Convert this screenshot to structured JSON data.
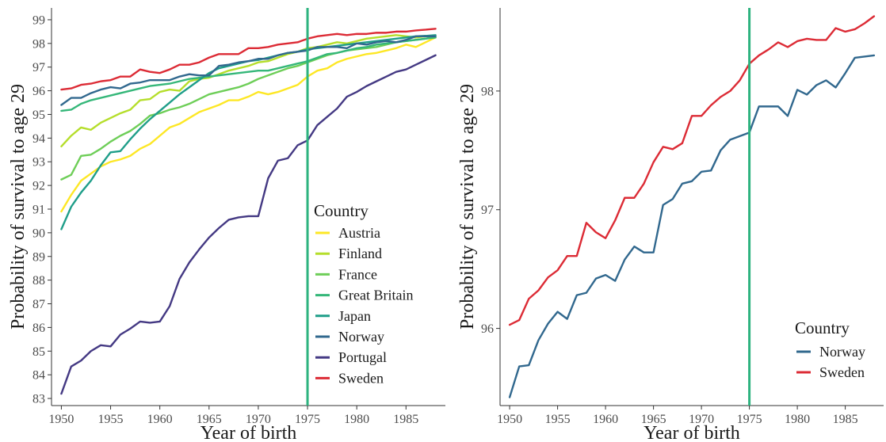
{
  "chart_data": [
    {
      "type": "line",
      "xlabel": "Year of birth",
      "ylabel": "Probability of survival to age 29",
      "xlim": [
        1949,
        1989
      ],
      "ylim": [
        82.7,
        99.5
      ],
      "xticks": [
        1950,
        1955,
        1960,
        1965,
        1970,
        1975,
        1980,
        1985
      ],
      "yticks": [
        83,
        84,
        85,
        86,
        87,
        88,
        89,
        90,
        91,
        92,
        93,
        94,
        95,
        96,
        97,
        98,
        99
      ],
      "vline": 1975,
      "vline_color": "#2db37f",
      "grid": false,
      "legend": {
        "title": "Country",
        "position": "right-inside"
      },
      "x": [
        1950,
        1951,
        1952,
        1953,
        1954,
        1955,
        1956,
        1957,
        1958,
        1959,
        1960,
        1961,
        1962,
        1963,
        1964,
        1965,
        1966,
        1967,
        1968,
        1969,
        1970,
        1971,
        1972,
        1973,
        1974,
        1975,
        1976,
        1977,
        1978,
        1979,
        1980,
        1981,
        1982,
        1983,
        1984,
        1985,
        1986,
        1987,
        1988
      ],
      "series": [
        {
          "name": "Austria",
          "color": "#fde725",
          "values": [
            90.9,
            91.6,
            92.2,
            92.5,
            92.8,
            93.0,
            93.1,
            93.25,
            93.55,
            93.75,
            94.1,
            94.45,
            94.6,
            94.85,
            95.1,
            95.25,
            95.4,
            95.6,
            95.6,
            95.75,
            95.95,
            95.85,
            95.95,
            96.1,
            96.25,
            96.6,
            96.85,
            96.95,
            97.2,
            97.35,
            97.45,
            97.55,
            97.6,
            97.7,
            97.8,
            97.95,
            97.85,
            98.05,
            98.25
          ]
        },
        {
          "name": "Finland",
          "color": "#b5de2b",
          "values": [
            93.65,
            94.1,
            94.45,
            94.35,
            94.65,
            94.85,
            95.05,
            95.2,
            95.6,
            95.65,
            95.95,
            96.05,
            96.0,
            96.4,
            96.5,
            96.55,
            96.7,
            96.85,
            96.95,
            97.05,
            97.2,
            97.25,
            97.4,
            97.55,
            97.65,
            97.8,
            97.85,
            97.95,
            98.05,
            98.0,
            98.1,
            98.2,
            98.25,
            98.3,
            98.35,
            98.3,
            98.25,
            98.3,
            98.3
          ]
        },
        {
          "name": "France",
          "color": "#6ece58",
          "values": [
            92.25,
            92.45,
            93.25,
            93.3,
            93.55,
            93.85,
            94.1,
            94.3,
            94.6,
            94.95,
            95.05,
            95.2,
            95.3,
            95.45,
            95.65,
            95.85,
            95.95,
            96.05,
            96.15,
            96.3,
            96.5,
            96.65,
            96.8,
            96.95,
            97.05,
            97.2,
            97.35,
            97.5,
            97.6,
            97.7,
            97.75,
            97.8,
            97.85,
            97.95,
            98.05,
            98.1,
            98.15,
            98.2,
            98.3
          ]
        },
        {
          "name": "Great Britain",
          "color": "#35b779",
          "values": [
            95.15,
            95.2,
            95.45,
            95.6,
            95.7,
            95.8,
            95.9,
            96.0,
            96.1,
            96.2,
            96.25,
            96.3,
            96.4,
            96.5,
            96.55,
            96.6,
            96.65,
            96.7,
            96.75,
            96.8,
            96.85,
            96.85,
            96.95,
            97.05,
            97.15,
            97.25,
            97.4,
            97.55,
            97.6,
            97.7,
            97.8,
            97.85,
            97.95,
            98.0,
            98.05,
            98.1,
            98.15,
            98.2,
            98.25
          ]
        },
        {
          "name": "Japan",
          "color": "#1f9e89",
          "values": [
            90.15,
            91.1,
            91.7,
            92.2,
            92.85,
            93.4,
            93.45,
            93.95,
            94.4,
            94.8,
            95.15,
            95.5,
            95.85,
            96.15,
            96.45,
            96.75,
            96.95,
            97.05,
            97.15,
            97.25,
            97.3,
            97.4,
            97.5,
            97.6,
            97.65,
            97.75,
            97.8,
            97.85,
            97.9,
            97.95,
            98.0,
            98.05,
            98.1,
            98.15,
            98.2,
            98.25,
            98.3,
            98.32,
            98.35
          ]
        },
        {
          "name": "Norway",
          "color": "#31688e",
          "values": [
            95.4,
            95.7,
            95.7,
            95.9,
            96.05,
            96.15,
            96.1,
            96.3,
            96.35,
            96.45,
            96.45,
            96.45,
            96.6,
            96.7,
            96.65,
            96.65,
            97.05,
            97.1,
            97.2,
            97.25,
            97.35,
            97.35,
            97.5,
            97.6,
            97.65,
            97.7,
            97.85,
            97.85,
            97.85,
            97.8,
            98.0,
            97.95,
            98.05,
            98.1,
            98.05,
            98.15,
            98.3,
            98.3,
            98.3
          ]
        },
        {
          "name": "Portugal",
          "color": "#443983",
          "values": [
            83.2,
            84.35,
            84.6,
            85.0,
            85.25,
            85.2,
            85.7,
            85.95,
            86.25,
            86.2,
            86.25,
            86.9,
            88.05,
            88.75,
            89.3,
            89.8,
            90.2,
            90.55,
            90.65,
            90.7,
            90.7,
            92.3,
            93.05,
            93.15,
            93.7,
            93.9,
            94.55,
            94.9,
            95.25,
            95.75,
            95.95,
            96.2,
            96.4,
            96.6,
            96.8,
            96.9,
            97.1,
            97.3,
            97.5
          ]
        },
        {
          "name": "Sweden",
          "color": "#dc2b35",
          "values": [
            96.05,
            96.1,
            96.25,
            96.3,
            96.4,
            96.45,
            96.6,
            96.6,
            96.9,
            96.8,
            96.75,
            96.9,
            97.1,
            97.1,
            97.2,
            97.4,
            97.55,
            97.55,
            97.55,
            97.8,
            97.8,
            97.85,
            97.95,
            98.0,
            98.05,
            98.2,
            98.3,
            98.35,
            98.4,
            98.35,
            98.4,
            98.4,
            98.45,
            98.45,
            98.5,
            98.5,
            98.55,
            98.58,
            98.62
          ]
        }
      ]
    },
    {
      "type": "line",
      "xlabel": "Year of birth",
      "ylabel": "Probability of survival to age 29",
      "xlim": [
        1949,
        1989
      ],
      "ylim": [
        95.35,
        98.7
      ],
      "xticks": [
        1950,
        1955,
        1960,
        1965,
        1970,
        1975,
        1980,
        1985
      ],
      "yticks": [
        96,
        97,
        98
      ],
      "vline": 1975,
      "vline_color": "#2db37f",
      "grid": false,
      "legend": {
        "title": "Country",
        "position": "bottom-right-inside"
      },
      "x": [
        1950,
        1951,
        1952,
        1953,
        1954,
        1955,
        1956,
        1957,
        1958,
        1959,
        1960,
        1961,
        1962,
        1963,
        1964,
        1965,
        1966,
        1967,
        1968,
        1969,
        1970,
        1971,
        1972,
        1973,
        1974,
        1975,
        1976,
        1977,
        1978,
        1979,
        1980,
        1981,
        1982,
        1983,
        1984,
        1985,
        1986,
        1987,
        1988
      ],
      "series": [
        {
          "name": "Norway",
          "color": "#31688e",
          "values": [
            95.42,
            95.68,
            95.69,
            95.9,
            96.04,
            96.14,
            96.08,
            96.28,
            96.3,
            96.42,
            96.45,
            96.4,
            96.58,
            96.69,
            96.64,
            96.64,
            97.04,
            97.09,
            97.22,
            97.24,
            97.32,
            97.33,
            97.5,
            97.59,
            97.62,
            97.65,
            97.87,
            97.87,
            97.87,
            97.79,
            98.01,
            97.97,
            98.05,
            98.09,
            98.03,
            98.15,
            98.28,
            98.29,
            98.3
          ]
        },
        {
          "name": "Sweden",
          "color": "#dc2b35",
          "values": [
            96.03,
            96.07,
            96.25,
            96.32,
            96.43,
            96.49,
            96.61,
            96.61,
            96.89,
            96.81,
            96.76,
            96.91,
            97.1,
            97.1,
            97.22,
            97.4,
            97.53,
            97.51,
            97.56,
            97.79,
            97.79,
            97.88,
            97.95,
            98.0,
            98.09,
            98.23,
            98.3,
            98.35,
            98.41,
            98.37,
            98.42,
            98.44,
            98.43,
            98.43,
            98.53,
            98.5,
            98.52,
            98.57,
            98.63
          ]
        }
      ]
    }
  ]
}
